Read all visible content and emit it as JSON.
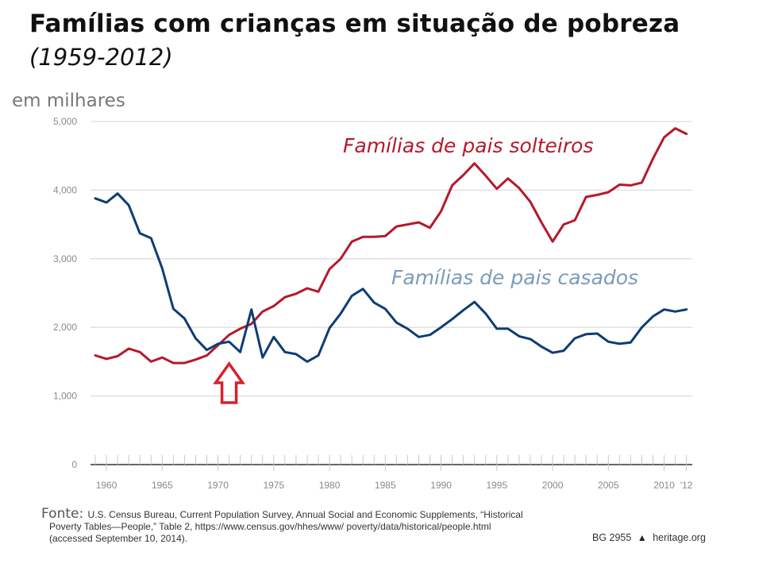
{
  "header": {
    "title": "Famílias com crianças em situação de pobreza",
    "subtitle": "(1959-2012)",
    "unit_label": "em milhares"
  },
  "colors": {
    "single_parent": "#b5192b",
    "married": "#0e3d73",
    "married_label": "#7a9bbb",
    "annotation_arrow": "#d9202a",
    "grid": "#dddddd",
    "axis": "#333333"
  },
  "chart_data": {
    "type": "line",
    "title": "Famílias com crianças em situação de pobreza (1959-2012)",
    "xlabel": "",
    "ylabel": "em milhares",
    "ylim": [
      0,
      5000
    ],
    "xlim": [
      1959,
      2012
    ],
    "grid": true,
    "yticks": [
      0,
      1000,
      2000,
      3000,
      4000,
      5000
    ],
    "ytick_labels": [
      "0",
      "1,000",
      "2,000",
      "3,000",
      "4,000",
      "5,000"
    ],
    "xticks": [
      1960,
      1965,
      1970,
      1975,
      1980,
      1985,
      1990,
      1995,
      2000,
      2005,
      2010,
      2012
    ],
    "xtick_labels": [
      "1960",
      "1965",
      "1970",
      "1975",
      "1980",
      "1985",
      "1990",
      "1995",
      "2000",
      "2005",
      "2010",
      "'12"
    ],
    "x": [
      1959,
      1960,
      1961,
      1962,
      1963,
      1964,
      1965,
      1966,
      1967,
      1968,
      1969,
      1970,
      1971,
      1972,
      1973,
      1974,
      1975,
      1976,
      1977,
      1978,
      1979,
      1980,
      1981,
      1982,
      1983,
      1984,
      1985,
      1986,
      1987,
      1988,
      1989,
      1990,
      1991,
      1992,
      1993,
      1994,
      1995,
      1996,
      1997,
      1998,
      1999,
      2000,
      2001,
      2002,
      2003,
      2004,
      2005,
      2006,
      2007,
      2008,
      2009,
      2010,
      2011,
      2012
    ],
    "series": [
      {
        "name": "Famílias de pais solteiros",
        "color_key": "single_parent",
        "values": [
          1590,
          1540,
          1580,
          1690,
          1640,
          1500,
          1560,
          1480,
          1480,
          1530,
          1590,
          1740,
          1890,
          1980,
          2050,
          2230,
          2310,
          2440,
          2490,
          2570,
          2520,
          2850,
          3000,
          3250,
          3320,
          3320,
          3330,
          3470,
          3500,
          3530,
          3450,
          3690,
          4070,
          4220,
          4390,
          4210,
          4020,
          4170,
          4030,
          3830,
          3530,
          3250,
          3500,
          3560,
          3900,
          3930,
          3970,
          4080,
          4070,
          4110,
          4460,
          4770,
          4900,
          4820
        ]
      },
      {
        "name": "Famílias de pais casados",
        "color_key": "married",
        "values": [
          3880,
          3820,
          3950,
          3780,
          3370,
          3300,
          2860,
          2270,
          2130,
          1840,
          1670,
          1760,
          1790,
          1640,
          2260,
          1560,
          1860,
          1640,
          1610,
          1500,
          1590,
          1990,
          2200,
          2460,
          2560,
          2360,
          2270,
          2070,
          1980,
          1860,
          1890,
          2000,
          2120,
          2250,
          2370,
          2200,
          1980,
          1980,
          1870,
          1830,
          1720,
          1630,
          1660,
          1840,
          1900,
          1910,
          1790,
          1760,
          1780,
          2000,
          2160,
          2260,
          2230,
          2260
        ]
      }
    ],
    "annotations": [
      {
        "type": "arrow-up",
        "year": 1971,
        "description": "red outlined upward arrow pointing at lines crossing"
      }
    ],
    "legend": "inline labels"
  },
  "footer": {
    "source_label": "Fonte:",
    "source_line1": "U.S. Census Bureau, Current Population Survey, Annual Social and Economic Supplements, “Historical",
    "source_line2": "Poverty Tables—People,” Table 2, https://www.census.gov/hhes/www/ poverty/data/historical/people.html",
    "source_line3": "(accessed September 10, 2014).",
    "report_id": "BG 2955",
    "site": "heritage.org"
  }
}
